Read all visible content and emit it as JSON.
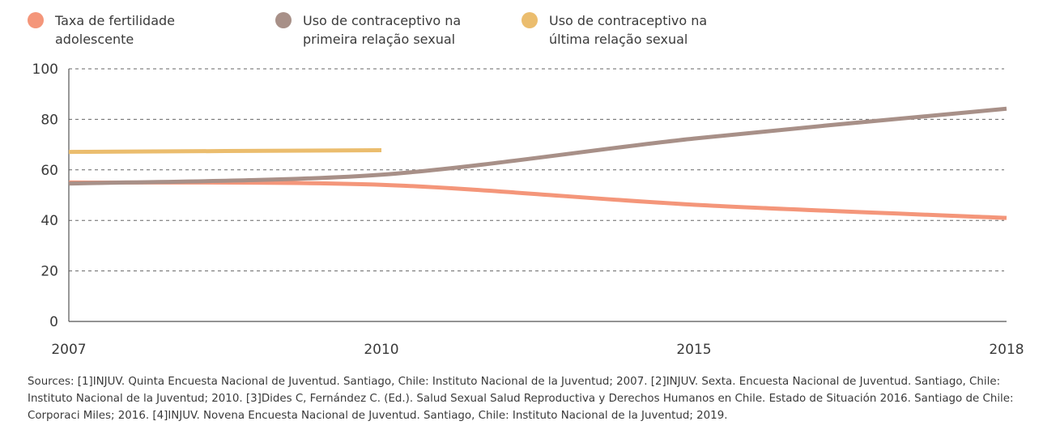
{
  "chart_data": {
    "type": "line",
    "categories": [
      "2007",
      "2010",
      "2015",
      "2018"
    ],
    "series": [
      {
        "name": "Taxa de fertilidade adolescente",
        "color": "#f4967a",
        "values": [
          55,
          54.1,
          46.2,
          41
        ]
      },
      {
        "name": "Uso de contraceptivo na primeira relação sexual",
        "color": "#a89088",
        "values": [
          54.6,
          58.1,
          72.4,
          84.2
        ]
      },
      {
        "name": "Uso de contraceptivo na última relação sexual",
        "color": "#ebbd6e",
        "values": [
          67.1,
          67.8,
          null,
          null
        ]
      }
    ],
    "ylim": [
      0,
      100
    ],
    "yticks": [
      "0",
      "20",
      "40",
      "60",
      "80",
      "100"
    ],
    "grid": "horizontal dashed",
    "legend_position": "top",
    "title": "",
    "xlabel": "",
    "ylabel": ""
  },
  "legend": [
    {
      "line1": "Taxa de fertilidade",
      "line2": "adolescente"
    },
    {
      "line1": "Uso de contraceptivo na",
      "line2": "primeira relação sexual"
    },
    {
      "line1": "Uso de contraceptivo na",
      "line2": "última relação sexual"
    }
  ],
  "sources": "Sources: [1]INJUV. Quinta Encuesta Nacional de Juventud. Santiago, Chile: Instituto Nacional de la Juventud; 2007. [2]INJUV. Sexta. Encuesta Nacional de Juventud. Santiago, Chile: Instituto Nacional de la Juventud; 2010. [3]Dides C, Fernández C. (Ed.). Salud Sexual Salud Reproductiva y Derechos Humanos en Chile. Estado de Situación 2016. Santiago de Chile: Corporaci Miles; 2016. [4]INJUV. Novena Encuesta Nacional de Juventud. Santiago, Chile: Instituto Nacional de la Juventud; 2019."
}
